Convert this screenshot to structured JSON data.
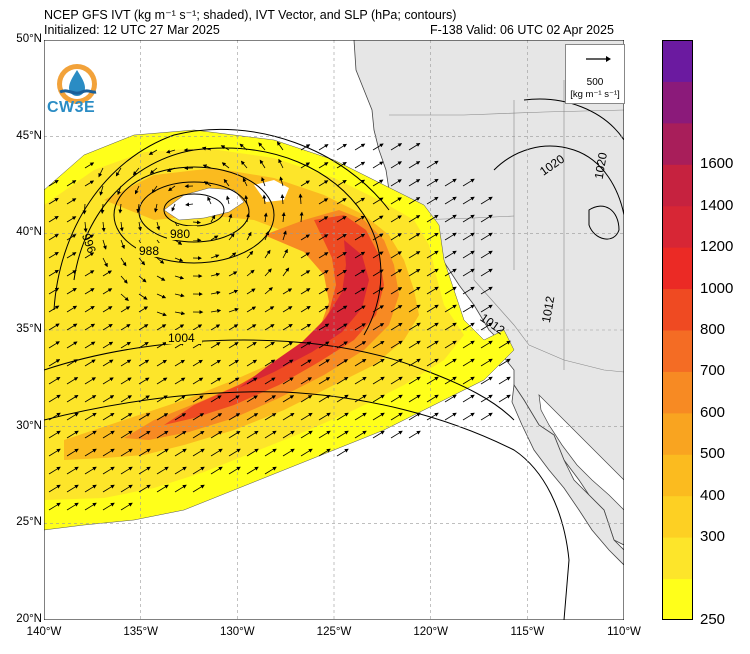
{
  "header": {
    "title_line": "NCEP GFS IVT (kg m⁻¹ s⁻¹; shaded), IVT Vector, and SLP (hPa; contours)",
    "init_line": "Initialized: 12 UTC 27 Mar 2025",
    "valid_line": "F-138  Valid: 06 UTC 02 Apr 2025"
  },
  "logo": {
    "text": "CW3E",
    "icon": "water-drop-logo-icon",
    "color": "#2a8cc4"
  },
  "axes": {
    "lat_labels": [
      "50°N",
      "45°N",
      "40°N",
      "35°N",
      "30°N",
      "25°N",
      "20°N"
    ],
    "lon_labels": [
      "140°W",
      "135°W",
      "130°W",
      "125°W",
      "120°W",
      "115°W",
      "110°W"
    ],
    "lat_range": [
      20,
      50
    ],
    "lon_range": [
      -140,
      -110
    ]
  },
  "reference_vector": {
    "value": "500",
    "units": "[kg m⁻¹ s⁻¹]"
  },
  "contour_labels": [
    "980",
    "988",
    "996",
    "1004",
    "1012",
    "1012",
    "1020",
    "1020"
  ],
  "colorbar": {
    "labels": [
      "1600",
      "1400",
      "1200",
      "1000",
      "800",
      "700",
      "600",
      "500",
      "400",
      "300",
      "250"
    ],
    "colors": [
      "#ffff1a",
      "#fde52a",
      "#fdd023",
      "#fbbb1f",
      "#f9a420",
      "#f78a23",
      "#f46c24",
      "#ef4a22",
      "#eb2a25",
      "#d72635",
      "#c6223f",
      "#a81e5a",
      "#8b1a7a",
      "#6b1aa0"
    ]
  }
}
